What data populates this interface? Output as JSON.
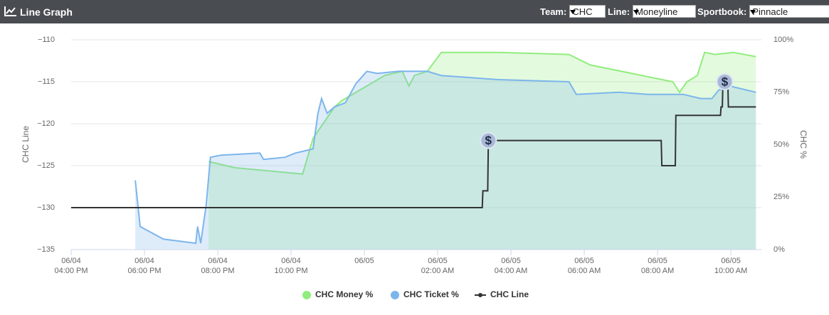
{
  "header": {
    "title": "Line Graph",
    "controls": [
      {
        "label": "Team:",
        "value": "CHC"
      },
      {
        "label": "Line:",
        "value": "Moneyline"
      },
      {
        "label": "Sportbook:",
        "value": "Pinnacle"
      }
    ]
  },
  "chart_data": {
    "type": "line",
    "ylabel": "CHC Line",
    "y2label": "CHC %",
    "grid": true,
    "xlim": [
      "06/04 04:00 PM",
      "06/05 10:50 AM"
    ],
    "xticks": [
      {
        "value": "06/04 04:00 PM",
        "label": "06/04 04:00 PM"
      },
      {
        "value": "06/04 06:00 PM",
        "label": "06/04 06:00 PM"
      },
      {
        "value": "06/04 08:00 PM",
        "label": "06/04 08:00 PM"
      },
      {
        "value": "06/04 10:00 PM",
        "label": "06/04 10:00 PM"
      },
      {
        "value": "06/05 12:00 AM",
        "label": "06/05"
      },
      {
        "value": "06/05 02:00 AM",
        "label": "06/05 02:00 AM"
      },
      {
        "value": "06/05 04:00 AM",
        "label": "06/05 04:00 AM"
      },
      {
        "value": "06/05 06:00 AM",
        "label": "06/05 06:00 AM"
      },
      {
        "value": "06/05 08:00 AM",
        "label": "06/05 08:00 AM"
      },
      {
        "value": "06/05 10:00 AM",
        "label": "06/05 10:00 AM"
      }
    ],
    "ylim": [
      -135,
      -110
    ],
    "yticks": [
      {
        "value": -135,
        "label": "−135"
      },
      {
        "value": -130,
        "label": "−130"
      },
      {
        "value": -125,
        "label": "−125"
      },
      {
        "value": -120,
        "label": "−120"
      },
      {
        "value": -115,
        "label": "−115"
      },
      {
        "value": -110,
        "label": "−110"
      }
    ],
    "y2lim": [
      0,
      100
    ],
    "y2ticks": [
      {
        "value": 0,
        "label": "0%"
      },
      {
        "value": 25,
        "label": "25%"
      },
      {
        "value": 50,
        "label": "50%"
      },
      {
        "value": 75,
        "label": "75%"
      },
      {
        "value": 100,
        "label": "100%"
      }
    ],
    "series": [
      {
        "name": "CHC Money %",
        "color": "#90ed7d",
        "axis": "y2",
        "area": true,
        "x": [
          "06/04 07:45 PM",
          "06/04 08:28 PM",
          "06/04 10:19 PM",
          "06/04 10:36 PM",
          "06/04 11:11 PM",
          "06/04 11:23 PM",
          "06/05 12:33 AM",
          "06/05 01:02 AM",
          "06/05 01:13 AM",
          "06/05 01:22 AM",
          "06/05 01:43 AM",
          "06/05 02:06 AM",
          "06/05 03:39 AM",
          "06/05 05:35 AM",
          "06/05 06:10 AM",
          "06/05 08:25 AM",
          "06/05 08:36 AM",
          "06/05 08:48 AM",
          "06/05 09:05 AM",
          "06/05 09:17 AM",
          "06/05 09:34 AM",
          "06/05 10:04 AM",
          "06/05 10:41 AM"
        ],
        "values": [
          42,
          39,
          36,
          53,
          68,
          71,
          83,
          85,
          78,
          83,
          85,
          94,
          94,
          93,
          88,
          80,
          75,
          80,
          83,
          94,
          93,
          94,
          92
        ]
      },
      {
        "name": "CHC Ticket %",
        "color": "#7cb5ec",
        "axis": "y2",
        "area": true,
        "x": [
          "06/04 05:45 PM",
          "06/04 05:53 PM",
          "06/04 06:31 PM",
          "06/04 07:24 PM",
          "06/04 07:27 PM",
          "06/04 07:32 PM",
          "06/04 07:41 PM",
          "06/04 07:48 PM",
          "06/04 08:05 PM",
          "06/04 09:09 PM",
          "06/04 09:15 PM",
          "06/04 09:50 PM",
          "06/04 10:07 PM",
          "06/04 10:36 PM",
          "06/04 10:44 PM",
          "06/04 10:50 PM",
          "06/04 10:59 PM",
          "06/04 11:11 PM",
          "06/04 11:29 PM",
          "06/04 11:46 PM",
          "06/05 12:04 AM",
          "06/05 12:21 AM",
          "06/05 12:56 AM",
          "06/05 01:43 AM",
          "06/05 02:06 AM",
          "06/05 03:39 AM",
          "06/05 05:35 AM",
          "06/05 05:47 AM",
          "06/05 06:57 AM",
          "06/05 07:44 AM",
          "06/05 08:42 AM",
          "06/05 09:11 AM",
          "06/05 09:29 AM",
          "06/05 09:40 AM",
          "06/05 09:58 AM",
          "06/05 10:41 AM"
        ],
        "values": [
          33,
          11,
          5,
          3,
          11,
          3,
          21,
          44,
          45,
          46,
          43,
          44,
          46,
          48,
          65,
          72,
          65,
          68,
          70,
          79,
          85,
          84,
          85,
          85,
          83,
          81,
          80,
          74,
          75,
          74,
          74,
          72,
          72,
          76,
          78,
          75
        ]
      },
      {
        "name": "CHC Line",
        "color": "#333333",
        "axis": "y",
        "area": false,
        "x": [
          "06/04 04:00 PM",
          "06/05 03:13 AM",
          "06/05 03:14 AM",
          "06/05 03:22 AM",
          "06/05 03:23 AM",
          "06/05 08:06 AM",
          "06/05 08:07 AM",
          "06/05 08:29 AM",
          "06/05 08:30 AM",
          "06/05 09:43 AM",
          "06/05 09:44 AM",
          "06/05 09:46 AM",
          "06/05 09:47 AM",
          "06/05 09:55 AM",
          "06/05 09:56 AM",
          "06/05 10:41 AM"
        ],
        "values": [
          -130,
          -130,
          -128,
          -128,
          -122,
          -122,
          -125,
          -125,
          -119,
          -119,
          -118,
          -118,
          -115,
          -115,
          -118,
          -118
        ]
      }
    ],
    "annotations": [
      {
        "x": "06/05 03:23 AM",
        "y": -122,
        "text": "$"
      },
      {
        "x": "06/05 09:50 AM",
        "y": -115,
        "text": "$"
      }
    ]
  }
}
